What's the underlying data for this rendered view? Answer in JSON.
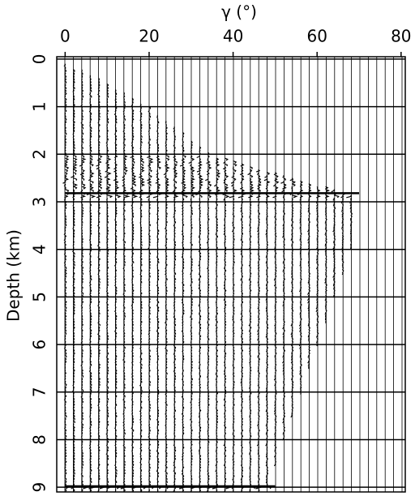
{
  "chart_data": {
    "type": "wiggle",
    "title": "γ (°)",
    "y_label": "Depth (km)",
    "xlim": [
      -2,
      81
    ],
    "xticks": [
      0,
      20,
      40,
      60,
      80
    ],
    "ylim": [
      -0.05,
      9.1
    ],
    "yticks": [
      0,
      1,
      2,
      3,
      4,
      5,
      6,
      7,
      8,
      9
    ],
    "grid": true,
    "color": "#000000"
  }
}
